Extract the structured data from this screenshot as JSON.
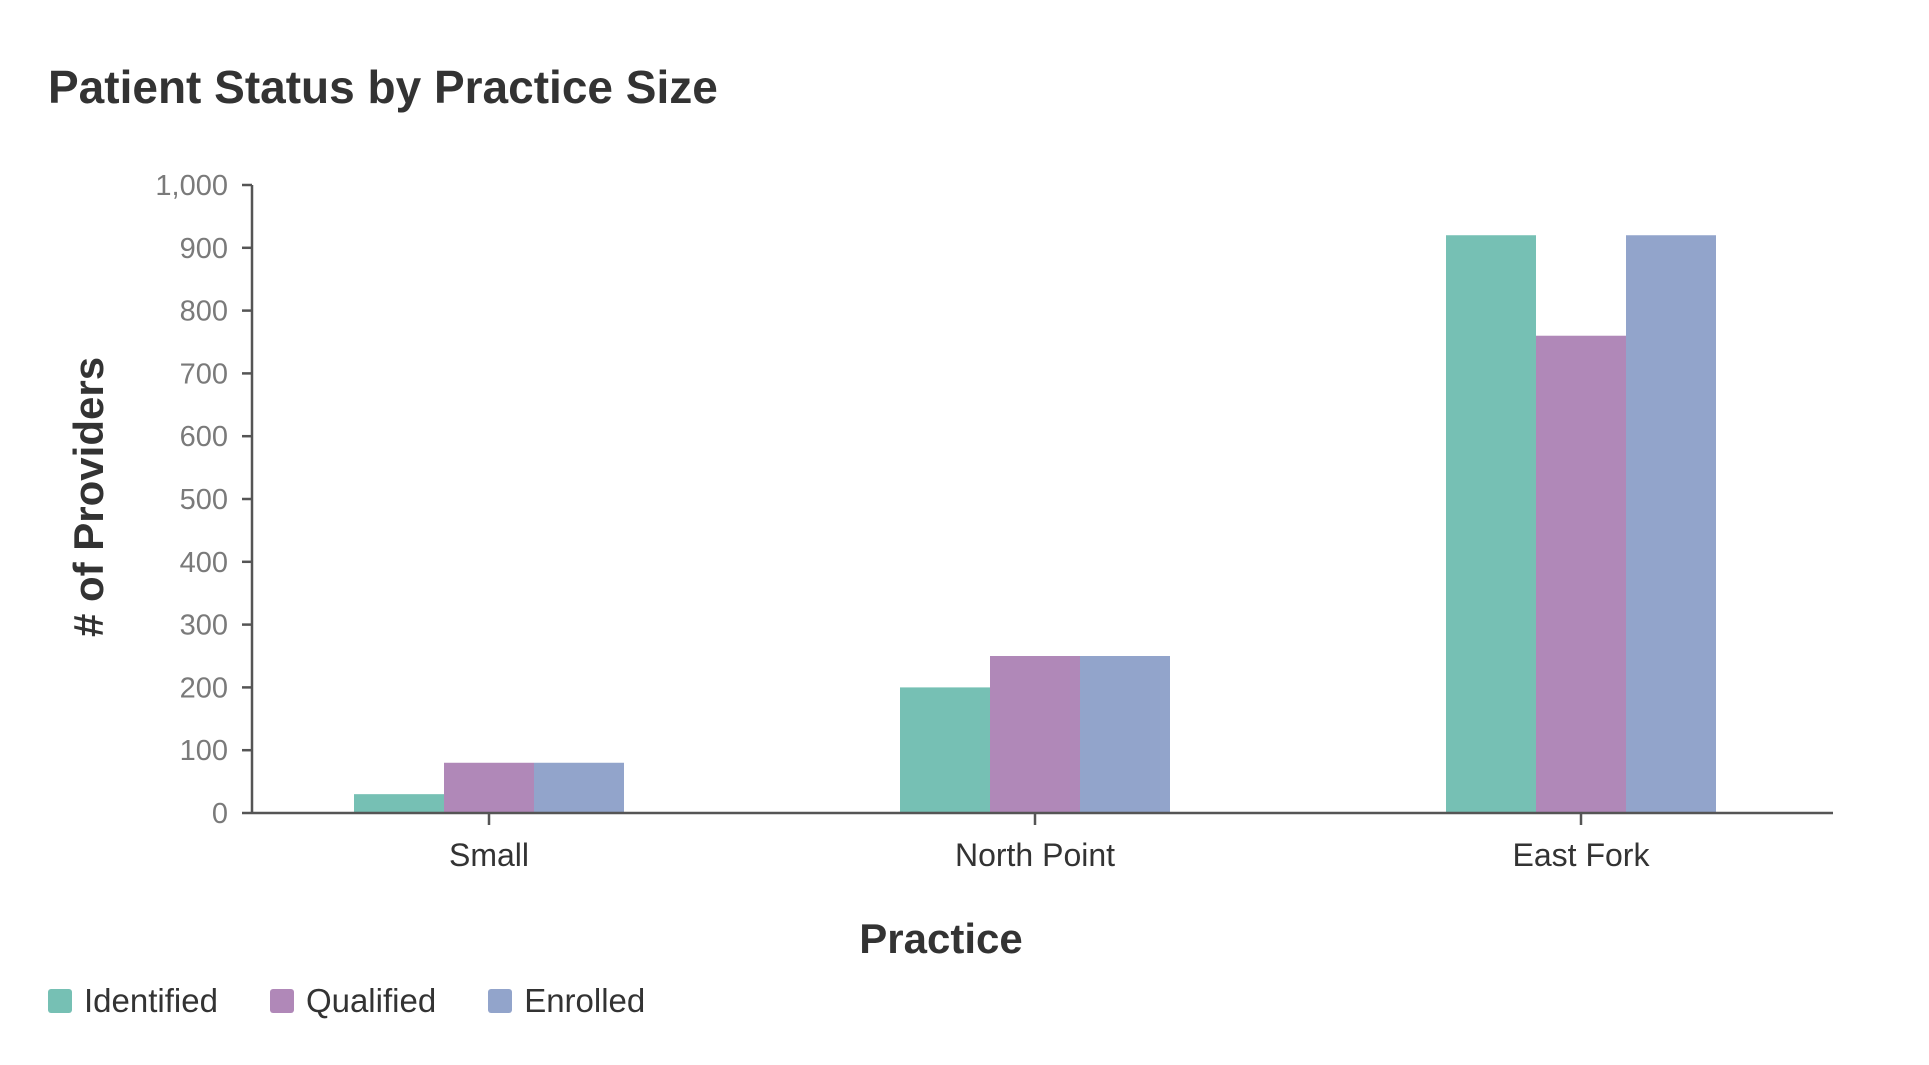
{
  "chart_data": {
    "type": "bar",
    "title": "Patient Status by Practice Size",
    "xlabel": "Practice",
    "ylabel": "# of Providers",
    "categories": [
      "Small",
      "North Point",
      "East Fork"
    ],
    "series": [
      {
        "name": "Identified",
        "color": "#76c0b4",
        "values": [
          30,
          200,
          920
        ]
      },
      {
        "name": "Qualified",
        "color": "#b088b8",
        "values": [
          80,
          250,
          760
        ]
      },
      {
        "name": "Enrolled",
        "color": "#92a4cb",
        "values": [
          80,
          250,
          920
        ]
      }
    ],
    "ylim": [
      0,
      1000
    ],
    "yticks": [
      0,
      100,
      200,
      300,
      400,
      500,
      600,
      700,
      800,
      900,
      1000
    ],
    "ytick_labels": [
      "0",
      "100",
      "200",
      "300",
      "400",
      "500",
      "600",
      "700",
      "800",
      "900",
      "1,000"
    ],
    "grid": false,
    "legend_position": "bottom-left"
  }
}
